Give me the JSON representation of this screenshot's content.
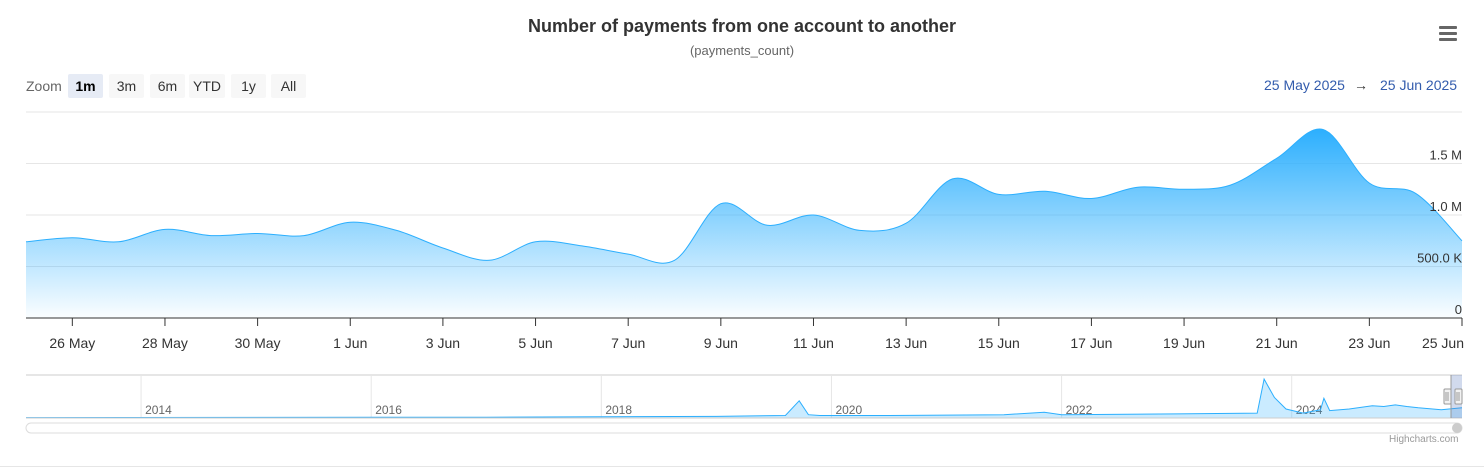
{
  "chart_data": {
    "type": "area",
    "title": "Number of payments from one account to another",
    "subtitle": "(payments_count)",
    "range_selector": {
      "label": "Zoom",
      "buttons": [
        "1m",
        "3m",
        "6m",
        "YTD",
        "1y",
        "All"
      ],
      "selected": "1m",
      "from": "25 May 2025",
      "arrow": "→",
      "to": "25 Jun 2025"
    },
    "x_range": [
      "2025-05-25",
      "2025-06-25"
    ],
    "x_tick_labels": [
      "26 May",
      "28 May",
      "30 May",
      "1 Jun",
      "3 Jun",
      "5 Jun",
      "7 Jun",
      "9 Jun",
      "11 Jun",
      "13 Jun",
      "15 Jun",
      "17 Jun",
      "19 Jun",
      "21 Jun",
      "23 Jun",
      "25 Jun"
    ],
    "y_tick_labels": [
      "0",
      "500.0 K",
      "1.0 M",
      "1.5 M"
    ],
    "y_ticks": [
      0,
      500000,
      1000000,
      1500000
    ],
    "ylim": [
      0,
      2000000
    ],
    "grid": true,
    "series": [
      {
        "x": [
          "2025-05-25",
          "2025-05-26",
          "2025-05-27",
          "2025-05-28",
          "2025-05-29",
          "2025-05-30",
          "2025-05-31",
          "2025-06-01",
          "2025-06-02",
          "2025-06-03",
          "2025-06-04",
          "2025-06-05",
          "2025-06-06",
          "2025-06-07",
          "2025-06-08",
          "2025-06-09",
          "2025-06-10",
          "2025-06-11",
          "2025-06-12",
          "2025-06-13",
          "2025-06-14",
          "2025-06-15",
          "2025-06-16",
          "2025-06-17",
          "2025-06-18",
          "2025-06-19",
          "2025-06-20",
          "2025-06-21",
          "2025-06-22",
          "2025-06-23",
          "2025-06-24",
          "2025-06-25"
        ],
        "y": [
          740000,
          780000,
          740000,
          860000,
          800000,
          820000,
          800000,
          930000,
          850000,
          680000,
          560000,
          740000,
          700000,
          620000,
          560000,
          1110000,
          900000,
          1000000,
          850000,
          920000,
          1350000,
          1200000,
          1230000,
          1160000,
          1270000,
          1250000,
          1290000,
          1550000,
          1830000,
          1310000,
          1210000,
          750000
        ]
      }
    ],
    "colors": {
      "area_top": "#2caffe",
      "line": "#2caffe",
      "grid": "#e6e6e6",
      "selected_button": "#e6ebf5"
    },
    "navigator": {
      "x_range": [
        "2013",
        "2025-06-25"
      ],
      "year_labels": [
        "2014",
        "2016",
        "2018",
        "2020",
        "2022",
        "2024"
      ],
      "year_positions": [
        2014,
        2016,
        2018,
        2020,
        2022,
        2024
      ],
      "series_points": [
        [
          2013.0,
          0.01
        ],
        [
          2015.0,
          0.015
        ],
        [
          2017.0,
          0.02
        ],
        [
          2019.0,
          0.04
        ],
        [
          2019.6,
          0.06
        ],
        [
          2019.72,
          0.42
        ],
        [
          2019.8,
          0.08
        ],
        [
          2019.9,
          0.06
        ],
        [
          2020.5,
          0.06
        ],
        [
          2021.5,
          0.08
        ],
        [
          2021.85,
          0.14
        ],
        [
          2022.0,
          0.08
        ],
        [
          2023.0,
          0.1
        ],
        [
          2023.7,
          0.12
        ],
        [
          2023.76,
          0.95
        ],
        [
          2023.85,
          0.5
        ],
        [
          2023.95,
          0.22
        ],
        [
          2024.1,
          0.12
        ],
        [
          2024.25,
          0.2
        ],
        [
          2024.28,
          0.48
        ],
        [
          2024.33,
          0.18
        ],
        [
          2024.5,
          0.22
        ],
        [
          2024.7,
          0.3
        ],
        [
          2024.8,
          0.28
        ],
        [
          2024.9,
          0.32
        ],
        [
          2025.0,
          0.28
        ],
        [
          2025.1,
          0.25
        ],
        [
          2025.3,
          0.2
        ],
        [
          2025.48,
          0.25
        ]
      ]
    },
    "credits": "Highcharts.com"
  }
}
